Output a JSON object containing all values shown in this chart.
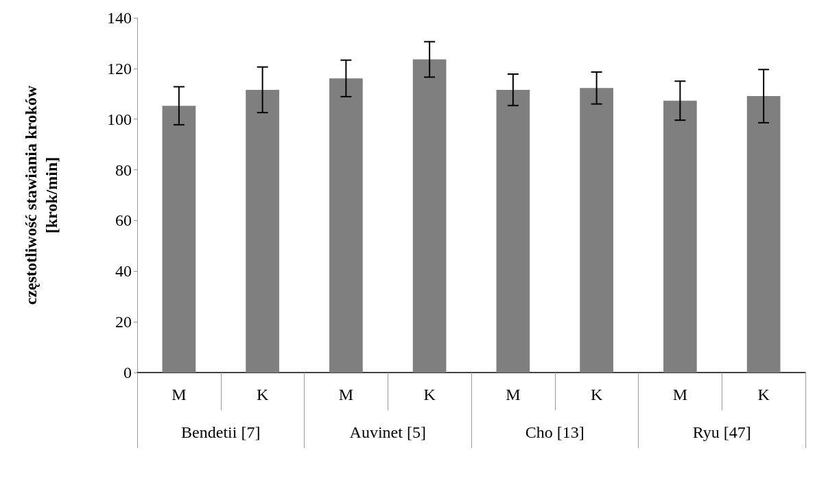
{
  "chart_data": {
    "type": "bar",
    "ylabel": "częstotliwość stawiania kroków [krok/min]",
    "categories": [
      "M",
      "K",
      "M",
      "K",
      "M",
      "K",
      "M",
      "K"
    ],
    "values": [
      105.3,
      111.6,
      116.1,
      123.6,
      111.6,
      112.3,
      107.3,
      109.1
    ],
    "errors": [
      7.5,
      9,
      7.2,
      7,
      6.2,
      6.3,
      7.7,
      10.5
    ],
    "color": "#7f7f7f",
    "ylim": [
      0,
      140
    ],
    "yticks": [
      0,
      20,
      40,
      60,
      80,
      100,
      120,
      140
    ],
    "annotations": [
      "Bendetii [7]",
      "Auvinet [5]",
      "Cho [13]",
      "Ryu [47]"
    ]
  }
}
